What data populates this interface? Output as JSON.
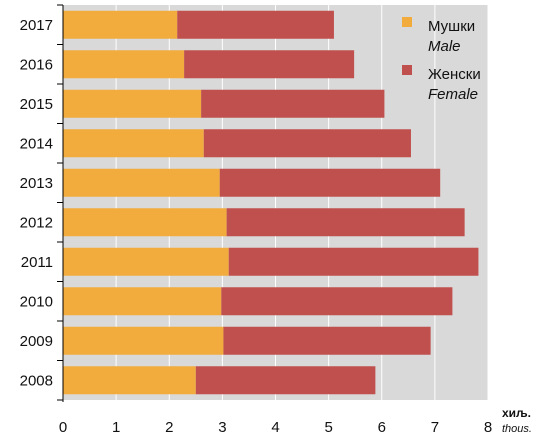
{
  "chart_data": {
    "type": "bar",
    "orientation": "horizontal",
    "stacked": true,
    "categories": [
      "2017",
      "2016",
      "2015",
      "2014",
      "2013",
      "2012",
      "2011",
      "2010",
      "2009",
      "2008"
    ],
    "series": [
      {
        "name": "Мушки",
        "name_secondary": "Male",
        "color": "#f2ac3e",
        "values": [
          2.15,
          2.28,
          2.6,
          2.65,
          2.95,
          3.08,
          3.12,
          2.98,
          3.02,
          2.5
        ]
      },
      {
        "name": "Женски",
        "name_secondary": "Female",
        "color": "#c0504d",
        "values": [
          2.95,
          3.2,
          3.45,
          3.9,
          4.15,
          4.48,
          4.7,
          4.35,
          3.9,
          3.38
        ]
      }
    ],
    "x_ticks": [
      "0",
      "1",
      "2",
      "3",
      "4",
      "5",
      "6",
      "7",
      "8"
    ],
    "xlim": [
      0,
      8
    ],
    "x_unit": "хиљ.",
    "x_unit_secondary": "thous.",
    "grid": true,
    "legend_position": "top-right",
    "plot_background": "#d9d9d9"
  }
}
